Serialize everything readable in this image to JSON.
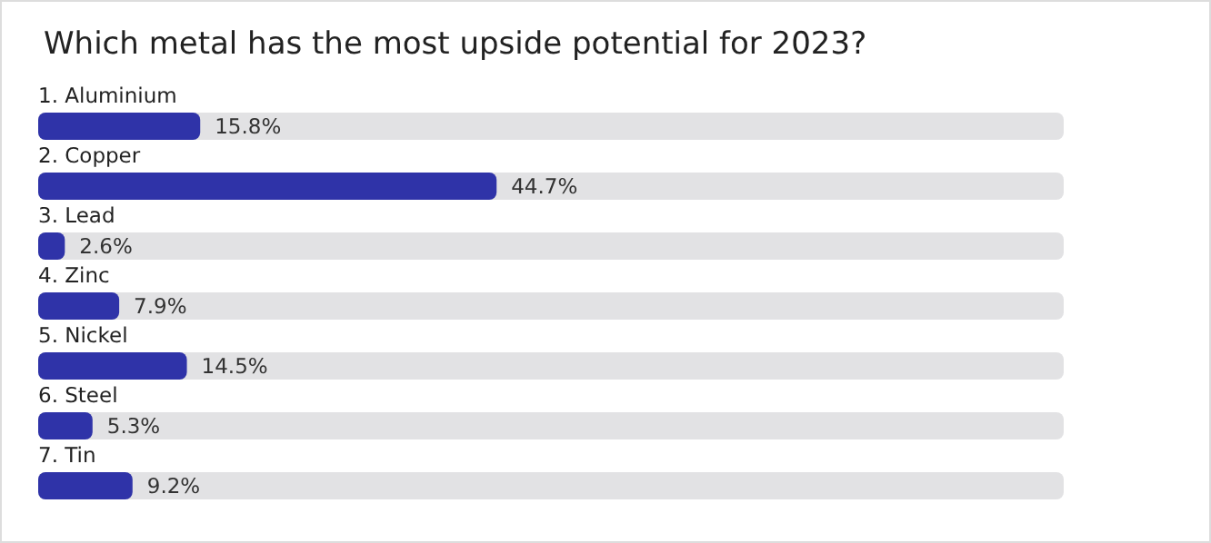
{
  "chart_data": {
    "type": "bar",
    "orientation": "horizontal",
    "title": "Which metal has the most upside potential for 2023?",
    "categories": [
      "1. Aluminium",
      "2. Copper",
      "3. Lead",
      "4. Zinc",
      "5. Nickel",
      "6. Steel",
      "7. Tin"
    ],
    "values": [
      15.8,
      44.7,
      2.6,
      7.9,
      14.5,
      5.3,
      9.2
    ],
    "value_labels": [
      "15.8%",
      "44.7%",
      "2.6%",
      "7.9%",
      "14.5%",
      "5.3%",
      "9.2%"
    ],
    "color": "#2f33a8",
    "xlim": [
      0,
      100
    ],
    "tick_labels": "y"
  }
}
